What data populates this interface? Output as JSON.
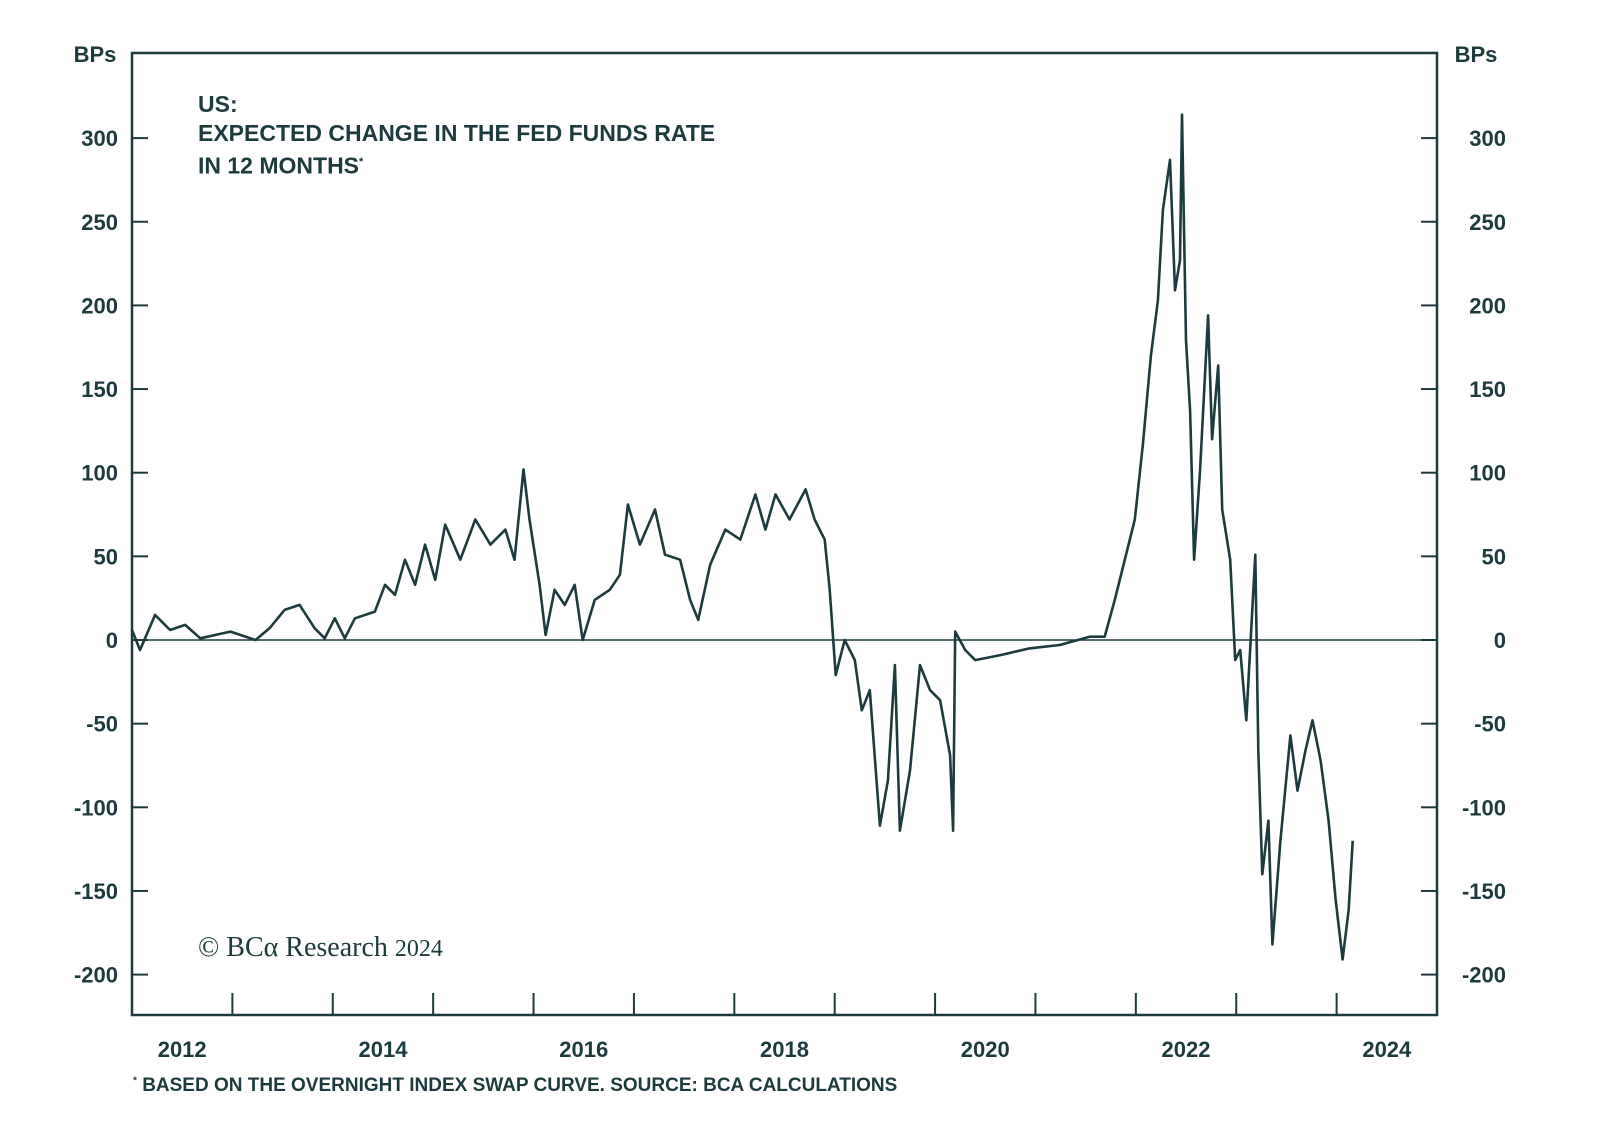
{
  "chart_data": {
    "type": "line",
    "title": "US: EXPECTED CHANGE IN THE FED FUNDS RATE IN 12 MONTHS",
    "title_lines": [
      "US:",
      "EXPECTED CHANGE IN THE FED FUNDS RATE",
      "IN 12 MONTHS"
    ],
    "title_footnote_mark": "*",
    "ylabel_left": "BPs",
    "ylabel_right": "BPs",
    "ylim": [
      -225,
      350
    ],
    "yticks": [
      300,
      250,
      200,
      150,
      100,
      50,
      0,
      -50,
      -100,
      -150,
      -200
    ],
    "xlim": [
      2012,
      2025
    ],
    "xtick_labels": [
      "2012",
      "2014",
      "2016",
      "2018",
      "2020",
      "2022",
      "2024"
    ],
    "grid": false,
    "zero_line": true,
    "color": "#1d3a3c",
    "series": [
      {
        "name": "Expected change in fed funds rate in 12 months (bps)",
        "x": [
          2012.0,
          2012.08,
          2012.23,
          2012.38,
          2012.53,
          2012.68,
          2012.98,
          2013.23,
          2013.37,
          2013.52,
          2013.67,
          2013.82,
          2013.92,
          2014.02,
          2014.12,
          2014.22,
          2014.42,
          2014.52,
          2014.62,
          2014.72,
          2014.82,
          2014.92,
          2015.02,
          2015.12,
          2015.27,
          2015.42,
          2015.57,
          2015.72,
          2015.81,
          2015.9,
          2015.96,
          2016.06,
          2016.12,
          2016.21,
          2016.31,
          2016.41,
          2016.49,
          2016.61,
          2016.76,
          2016.86,
          2016.94,
          2017.06,
          2017.21,
          2017.31,
          2017.46,
          2017.56,
          2017.64,
          2017.76,
          2017.91,
          2018.06,
          2018.21,
          2018.31,
          2018.41,
          2018.55,
          2018.71,
          2018.8,
          2018.9,
          2018.95,
          2019.01,
          2019.1,
          2019.2,
          2019.27,
          2019.35,
          2019.45,
          2019.53,
          2019.6,
          2019.65,
          2019.75,
          2019.85,
          2019.95,
          2020.05,
          2020.15,
          2020.18,
          2020.2,
          2020.3,
          2020.4,
          2020.65,
          2020.94,
          2021.24,
          2021.54,
          2021.69,
          2021.79,
          2021.89,
          2021.99,
          2022.07,
          2022.15,
          2022.22,
          2022.27,
          2022.34,
          2022.39,
          2022.44,
          2022.46,
          2022.5,
          2022.54,
          2022.58,
          2022.64,
          2022.72,
          2022.76,
          2022.82,
          2022.86,
          2022.94,
          2022.99,
          2023.04,
          2023.1,
          2023.19,
          2023.22,
          2023.26,
          2023.32,
          2023.36,
          2023.44,
          2023.54,
          2023.61,
          2023.69,
          2023.76,
          2023.84,
          2023.92,
          2023.99,
          2024.06,
          2024.12,
          2024.16
        ],
        "values": [
          6,
          -6,
          15,
          6,
          9,
          1,
          5,
          0,
          7,
          18,
          21,
          7,
          1,
          13,
          1,
          13,
          17,
          33,
          27,
          48,
          33,
          57,
          36,
          69,
          48,
          72,
          57,
          66,
          48,
          102,
          72,
          33,
          3,
          30,
          21,
          33,
          0,
          24,
          30,
          39,
          81,
          57,
          78,
          51,
          48,
          24,
          12,
          45,
          66,
          60,
          87,
          66,
          87,
          72,
          90,
          72,
          60,
          30,
          -21,
          0,
          -12,
          -42,
          -30,
          -111,
          -84,
          -15,
          -114,
          -78,
          -15,
          -30,
          -36,
          -69,
          -114,
          5,
          -6,
          -12,
          -9,
          -5,
          -3,
          2,
          2,
          24,
          48,
          72,
          117,
          170,
          203,
          257,
          287,
          209,
          227,
          314,
          179,
          137,
          48,
          102,
          194,
          120,
          164,
          78,
          48,
          -12,
          -6,
          -48,
          51,
          -66,
          -140,
          -108,
          -182,
          -120,
          -57,
          -90,
          -66,
          -48,
          -72,
          -108,
          -155,
          -191,
          -161,
          -120
        ]
      }
    ],
    "annotations": {
      "copyright": "© BCα Research",
      "copyright_year": "2024",
      "footnote_mark": "*",
      "footnote": "BASED ON THE OVERNIGHT INDEX SWAP CURVE. SOURCE: BCA CALCULATIONS"
    }
  }
}
